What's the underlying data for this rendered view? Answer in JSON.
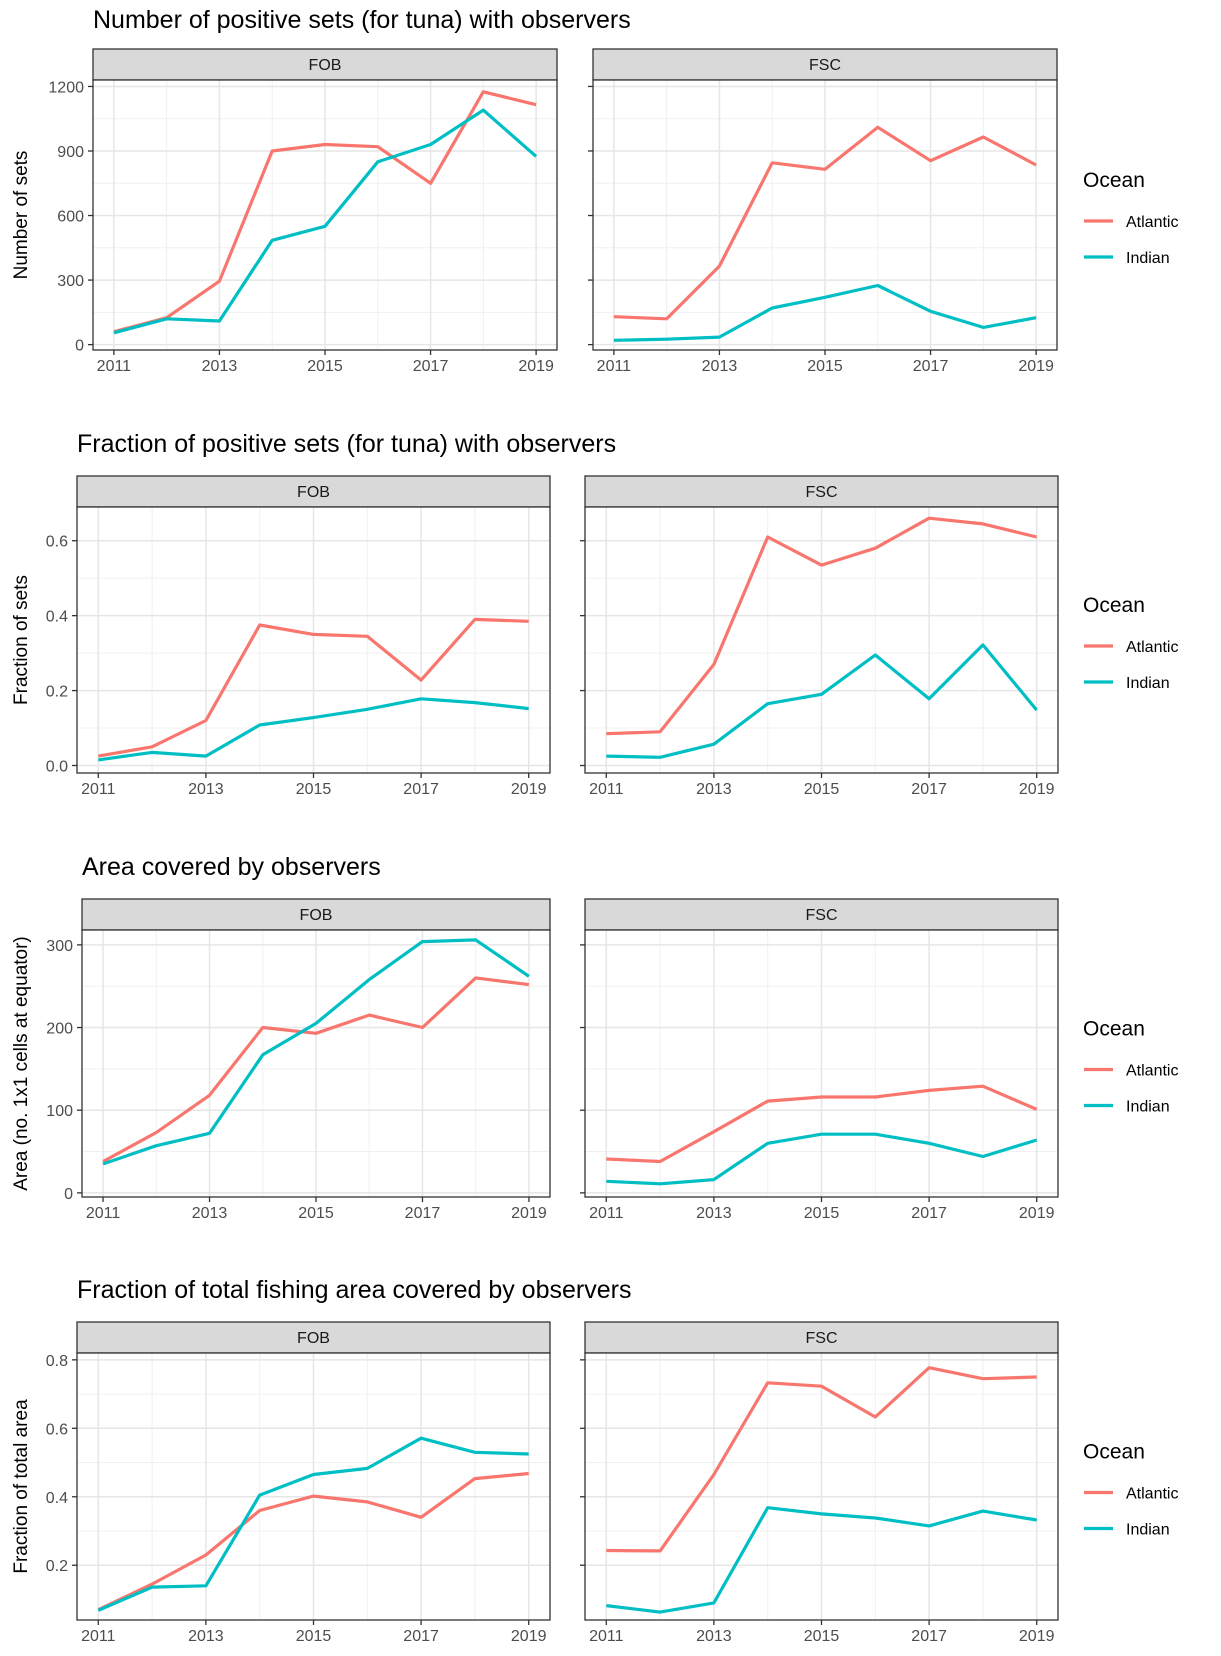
{
  "colors": {
    "Atlantic": "#F8766D",
    "Indian": "#00BFC4"
  },
  "chart_data": [
    {
      "type": "line",
      "title": "Number of positive sets (for tuna) with observers",
      "xlabel": "",
      "ylabel": "Number of sets",
      "x": [
        2011,
        2012,
        2013,
        2014,
        2015,
        2016,
        2017,
        2018,
        2019
      ],
      "x_ticks": [
        2011,
        2013,
        2015,
        2017,
        2019
      ],
      "y_ticks": [
        0,
        300,
        600,
        900,
        1200
      ],
      "y_tick_labels": [
        "0",
        "300",
        "600",
        "900",
        "1200"
      ],
      "ylim": [
        -25,
        1230
      ],
      "grid": true,
      "legend": {
        "title": "Ocean",
        "position": "right"
      },
      "panels": [
        {
          "label": "FOB",
          "series": [
            {
              "name": "Atlantic",
              "values": [
                60,
                125,
                295,
                900,
                930,
                920,
                750,
                1175,
                1115
              ]
            },
            {
              "name": "Indian",
              "values": [
                55,
                120,
                110,
                485,
                550,
                850,
                930,
                1090,
                875
              ]
            }
          ]
        },
        {
          "label": "FSC",
          "series": [
            {
              "name": "Atlantic",
              "values": [
                130,
                120,
                365,
                845,
                815,
                1010,
                855,
                965,
                835
              ]
            },
            {
              "name": "Indian",
              "values": [
                20,
                25,
                35,
                170,
                220,
                275,
                155,
                80,
                125
              ]
            }
          ]
        }
      ]
    },
    {
      "type": "line",
      "title": "Fraction of positive sets (for tuna) with observers",
      "xlabel": "",
      "ylabel": "Fraction of sets",
      "x": [
        2011,
        2012,
        2013,
        2014,
        2015,
        2016,
        2017,
        2018,
        2019
      ],
      "x_ticks": [
        2011,
        2013,
        2015,
        2017,
        2019
      ],
      "y_ticks": [
        0,
        0.2,
        0.4,
        0.6
      ],
      "y_tick_labels": [
        "0.0",
        "0.2",
        "0.4",
        "0.6"
      ],
      "ylim": [
        -0.02,
        0.69
      ],
      "grid": true,
      "legend": {
        "title": "Ocean",
        "position": "right"
      },
      "panels": [
        {
          "label": "FOB",
          "series": [
            {
              "name": "Atlantic",
              "values": [
                0.025,
                0.05,
                0.12,
                0.375,
                0.35,
                0.345,
                0.228,
                0.39,
                0.385
              ]
            },
            {
              "name": "Indian",
              "values": [
                0.015,
                0.035,
                0.025,
                0.108,
                0.128,
                0.15,
                0.178,
                0.168,
                0.152
              ]
            }
          ]
        },
        {
          "label": "FSC",
          "series": [
            {
              "name": "Atlantic",
              "values": [
                0.085,
                0.09,
                0.27,
                0.61,
                0.535,
                0.58,
                0.66,
                0.645,
                0.61
              ]
            },
            {
              "name": "Indian",
              "values": [
                0.025,
                0.022,
                0.057,
                0.165,
                0.19,
                0.295,
                0.178,
                0.322,
                0.148
              ]
            }
          ]
        }
      ]
    },
    {
      "type": "line",
      "title": "Area covered by observers",
      "xlabel": "",
      "ylabel": "Area (no. 1x1 cells at equator)",
      "x": [
        2011,
        2012,
        2013,
        2014,
        2015,
        2016,
        2017,
        2018,
        2019
      ],
      "x_ticks": [
        2011,
        2013,
        2015,
        2017,
        2019
      ],
      "y_ticks": [
        0,
        100,
        200,
        300
      ],
      "y_tick_labels": [
        "0",
        "100",
        "200",
        "300"
      ],
      "ylim": [
        -5,
        318
      ],
      "grid": true,
      "legend": {
        "title": "Ocean",
        "position": "right"
      },
      "panels": [
        {
          "label": "FOB",
          "series": [
            {
              "name": "Atlantic",
              "values": [
                38,
                73,
                118,
                200,
                193,
                215,
                200,
                260,
                252
              ]
            },
            {
              "name": "Indian",
              "values": [
                35,
                57,
                72,
                167,
                205,
                258,
                304,
                306,
                262
              ]
            }
          ]
        },
        {
          "label": "FSC",
          "series": [
            {
              "name": "Atlantic",
              "values": [
                41,
                38,
                74,
                111,
                116,
                116,
                124,
                129,
                101
              ]
            },
            {
              "name": "Indian",
              "values": [
                14,
                11,
                16,
                60,
                71,
                71,
                60,
                44,
                64
              ]
            }
          ]
        }
      ]
    },
    {
      "type": "line",
      "title": "Fraction of total fishing area covered by observers",
      "xlabel": "",
      "ylabel": "Fraction of total area",
      "x": [
        2011,
        2012,
        2013,
        2014,
        2015,
        2016,
        2017,
        2018,
        2019
      ],
      "x_ticks": [
        2011,
        2013,
        2015,
        2017,
        2019
      ],
      "y_ticks": [
        0.2,
        0.4,
        0.6,
        0.8
      ],
      "y_tick_labels": [
        "0.2",
        "0.4",
        "0.6",
        "0.8"
      ],
      "ylim": [
        0.04,
        0.82
      ],
      "grid": true,
      "legend": {
        "title": "Ocean",
        "position": "right"
      },
      "panels": [
        {
          "label": "FOB",
          "series": [
            {
              "name": "Atlantic",
              "values": [
                0.07,
                0.145,
                0.23,
                0.36,
                0.402,
                0.385,
                0.34,
                0.453,
                0.468
              ]
            },
            {
              "name": "Indian",
              "values": [
                0.068,
                0.136,
                0.14,
                0.405,
                0.465,
                0.483,
                0.571,
                0.53,
                0.525
              ]
            }
          ]
        },
        {
          "label": "FSC",
          "series": [
            {
              "name": "Atlantic",
              "values": [
                0.243,
                0.242,
                0.465,
                0.733,
                0.723,
                0.633,
                0.777,
                0.745,
                0.75
              ]
            },
            {
              "name": "Indian",
              "values": [
                0.082,
                0.063,
                0.09,
                0.368,
                0.35,
                0.338,
                0.315,
                0.358,
                0.332
              ]
            }
          ]
        }
      ]
    }
  ]
}
